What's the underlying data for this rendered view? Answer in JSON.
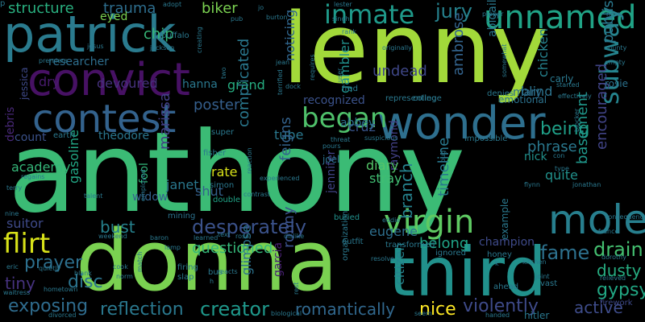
{
  "background": "#000000",
  "words": [
    {
      "text": "anthony",
      "color": "#3bbb75"
    },
    {
      "text": "lenny",
      "color": "#a2d93a"
    },
    {
      "text": "donna",
      "color": "#7ad151"
    },
    {
      "text": "patrick",
      "color": "#2a7b8e"
    },
    {
      "text": "third",
      "color": "#21918c"
    },
    {
      "text": "convict",
      "color": "#471164"
    },
    {
      "text": "wonder",
      "color": "#2e6f8e"
    },
    {
      "text": "contest",
      "color": "#33628d"
    },
    {
      "text": "unnamed",
      "color": "#20a386"
    },
    {
      "text": "inmate",
      "color": "#1f9a8a"
    },
    {
      "text": "jury",
      "color": "#26828e"
    },
    {
      "text": "mole",
      "color": "#277f8e"
    },
    {
      "text": "virgin",
      "color": "#5ec962"
    },
    {
      "text": "subway",
      "color": "#25848e"
    },
    {
      "text": "began",
      "color": "#4fc16b"
    },
    {
      "text": "flirt",
      "color": "#d8e219"
    },
    {
      "text": "desperately",
      "color": "#3b528b"
    },
    {
      "text": "creator",
      "color": "#1f988b"
    },
    {
      "text": "exposing",
      "color": "#2f6c8e"
    },
    {
      "text": "reflection",
      "color": "#2a788e"
    },
    {
      "text": "violently",
      "color": "#3e4a89"
    },
    {
      "text": "romantically",
      "color": "#31688e"
    },
    {
      "text": "questioned",
      "color": "#35b779"
    },
    {
      "text": "prayer",
      "color": "#2d708e"
    },
    {
      "text": "disc",
      "color": "#2b748e"
    },
    {
      "text": "tiny",
      "color": "#46327e"
    },
    {
      "text": "bust",
      "color": "#26828e"
    },
    {
      "text": "fame",
      "color": "#2d718e"
    },
    {
      "text": "drain",
      "color": "#44bf70"
    },
    {
      "text": "gypsy",
      "color": "#22a884"
    },
    {
      "text": "dusty",
      "color": "#26ad81"
    },
    {
      "text": "active",
      "color": "#3e4c8a"
    },
    {
      "text": "nice",
      "color": "#fde725"
    },
    {
      "text": "being",
      "color": "#1fa088"
    },
    {
      "text": "structure",
      "color": "#29af7f"
    },
    {
      "text": "trauma",
      "color": "#2e6e8e"
    },
    {
      "text": "chip",
      "color": "#37b878"
    },
    {
      "text": "poster",
      "color": "#355f8d"
    },
    {
      "text": "dry",
      "color": "#481b6d"
    },
    {
      "text": "undead",
      "color": "#3f4788"
    },
    {
      "text": "blind",
      "color": "#2c738e"
    },
    {
      "text": "mary",
      "color": "#2e6d8e"
    },
    {
      "text": "gambler",
      "color": "#21918c"
    },
    {
      "text": "noticing",
      "color": "#31668e"
    },
    {
      "text": "grand",
      "color": "#26ad81"
    },
    {
      "text": "recognized",
      "color": "#3b528b"
    },
    {
      "text": "tube",
      "color": "#2a788e"
    },
    {
      "text": "cruz",
      "color": "#39558c"
    },
    {
      "text": "count",
      "color": "#3b528b"
    },
    {
      "text": "theodore",
      "color": "#2a768e"
    },
    {
      "text": "academy",
      "color": "#35b779"
    },
    {
      "text": "marissa",
      "color": "#424086"
    },
    {
      "text": "gasoline",
      "color": "#22a785"
    },
    {
      "text": "fool",
      "color": "#32b67a"
    },
    {
      "text": "janet",
      "color": "#2a788e"
    },
    {
      "text": "shut",
      "color": "#34618d"
    },
    {
      "text": "complicated",
      "color": "#2a788e"
    },
    {
      "text": "feigns",
      "color": "#33628d"
    },
    {
      "text": "ronny",
      "color": "#3b528b"
    },
    {
      "text": "glimpse",
      "color": "#2c728e"
    },
    {
      "text": "garcia",
      "color": "#482173"
    },
    {
      "text": "eugene",
      "color": "#2e6f8e"
    },
    {
      "text": "jennifer",
      "color": "#414487"
    },
    {
      "text": "belong",
      "color": "#20a386"
    },
    {
      "text": "raymond",
      "color": "#424086"
    },
    {
      "text": "diary",
      "color": "#54c568"
    },
    {
      "text": "stray",
      "color": "#40bd72"
    },
    {
      "text": "abbey",
      "color": "#2d708e"
    },
    {
      "text": "branch",
      "color": "#26828e"
    },
    {
      "text": "timeline",
      "color": "#29798e"
    },
    {
      "text": "ambrose",
      "color": "#33638d"
    },
    {
      "text": "citizen",
      "color": "#25838e"
    },
    {
      "text": "basement",
      "color": "#1f978b"
    },
    {
      "text": "encouraged",
      "color": "#414487"
    },
    {
      "text": "quite",
      "color": "#21918c"
    },
    {
      "text": "publishing",
      "color": "#2a788e"
    },
    {
      "text": "phrase",
      "color": "#2a788e"
    },
    {
      "text": "nick",
      "color": "#21918c"
    },
    {
      "text": "chicken",
      "color": "#26828e"
    },
    {
      "text": "biker",
      "color": "#7ad151"
    },
    {
      "text": "researcher",
      "color": "#2e6e8e"
    },
    {
      "text": "devoured",
      "color": "#46327e"
    },
    {
      "text": "hanna",
      "color": "#2a788e"
    },
    {
      "text": "rate",
      "color": "#d8e219"
    },
    {
      "text": "widow",
      "color": "#34618d"
    },
    {
      "text": "suitor",
      "color": "#3e4a89"
    },
    {
      "text": "debris",
      "color": "#482878"
    },
    {
      "text": "jessica",
      "color": "#3e4989"
    },
    {
      "text": "eyed",
      "color": "#7ad151"
    },
    {
      "text": "abigail",
      "color": "#2a788e"
    },
    {
      "text": "carly",
      "color": "#2a788e"
    },
    {
      "text": "rosie",
      "color": "#2c728e"
    },
    {
      "text": "emotional",
      "color": "#2c728e"
    },
    {
      "text": "denies",
      "color": "#2a788e"
    },
    {
      "text": "example",
      "color": "#2a788e"
    },
    {
      "text": "champion",
      "color": "#3e4a89"
    },
    {
      "text": "joel",
      "color": "#2c728e"
    },
    {
      "text": "buried",
      "color": "#21918c"
    },
    {
      "text": "mining",
      "color": "#2c728e"
    },
    {
      "text": "double",
      "color": "#20a386"
    },
    {
      "text": "impossible",
      "color": "#2a788e"
    },
    {
      "text": "firework",
      "color": "#3e4a89"
    },
    {
      "text": "hitler",
      "color": "#2a788e"
    },
    {
      "text": "vast",
      "color": "#2a788e"
    },
    {
      "text": "ahead",
      "color": "#2a788e"
    },
    {
      "text": "honey",
      "color": "#2a788e"
    },
    {
      "text": "adopt",
      "color": "#2a788e"
    },
    {
      "text": "jo",
      "color": "#2a788e"
    },
    {
      "text": "burton",
      "color": "#2a788e"
    },
    {
      "text": "lester",
      "color": "#2a788e"
    },
    {
      "text": "singh",
      "color": "#2a788e"
    },
    {
      "text": "rank",
      "color": "#2a788e"
    },
    {
      "text": "proper",
      "color": "#2a788e"
    },
    {
      "text": "nora",
      "color": "#2a788e"
    },
    {
      "text": "county",
      "color": "#2a788e"
    },
    {
      "text": "empty",
      "color": "#2a788e"
    },
    {
      "text": "fisher",
      "color": "#2a788e"
    },
    {
      "text": "simon",
      "color": "#2a788e"
    },
    {
      "text": "super",
      "color": "#2a788e"
    },
    {
      "text": "earth",
      "color": "#2a788e"
    },
    {
      "text": "buffalo",
      "color": "#2a788e"
    },
    {
      "text": "jackson",
      "color": "#2a788e"
    },
    {
      "text": "jesus",
      "color": "#2a788e"
    },
    {
      "text": "jean",
      "color": "#2a788e"
    },
    {
      "text": "premiere",
      "color": "#2a788e"
    },
    {
      "text": "fred",
      "color": "#2a788e"
    },
    {
      "text": "representing",
      "color": "#2a788e"
    },
    {
      "text": "college",
      "color": "#2a788e"
    },
    {
      "text": "suspicious",
      "color": "#2a788e"
    },
    {
      "text": "threat",
      "color": "#2a788e"
    },
    {
      "text": "pours",
      "color": "#2a788e"
    },
    {
      "text": "eddie",
      "color": "#2a788e"
    },
    {
      "text": "transformed",
      "color": "#2a788e"
    },
    {
      "text": "ignored",
      "color": "#2a788e"
    },
    {
      "text": "organization",
      "color": "#2a788e"
    },
    {
      "text": "resolve",
      "color": "#2a788e"
    },
    {
      "text": "outfit",
      "color": "#2a788e"
    },
    {
      "text": "dislike",
      "color": "#2a788e"
    },
    {
      "text": "weekend",
      "color": "#2a788e"
    },
    {
      "text": "baron",
      "color": "#2a788e"
    },
    {
      "text": "learned",
      "color": "#2a788e"
    },
    {
      "text": "text",
      "color": "#2a788e"
    },
    {
      "text": "rosa",
      "color": "#2a788e"
    },
    {
      "text": "cook",
      "color": "#2a788e"
    },
    {
      "text": "norm",
      "color": "#2a788e"
    },
    {
      "text": "firing",
      "color": "#2a788e"
    },
    {
      "text": "slap",
      "color": "#2a788e"
    },
    {
      "text": "bus",
      "color": "#2a788e"
    },
    {
      "text": "blank",
      "color": "#2a788e"
    },
    {
      "text": "eric",
      "color": "#2a788e"
    },
    {
      "text": "quietly",
      "color": "#2a788e"
    },
    {
      "text": "waitress",
      "color": "#2a788e"
    },
    {
      "text": "hometown",
      "color": "#2a788e"
    },
    {
      "text": "divorced",
      "color": "#2a788e"
    },
    {
      "text": "seem",
      "color": "#2a788e"
    },
    {
      "text": "handed",
      "color": "#2a788e"
    },
    {
      "text": "kitchen",
      "color": "#2a788e"
    },
    {
      "text": "joint",
      "color": "#2a788e"
    },
    {
      "text": "relieved",
      "color": "#2a788e"
    },
    {
      "text": "dorothy",
      "color": "#2a788e"
    },
    {
      "text": "france",
      "color": "#2a788e"
    },
    {
      "text": "consequence",
      "color": "#2a788e"
    },
    {
      "text": "jonathan",
      "color": "#2a788e"
    },
    {
      "text": "flynn",
      "color": "#2a788e"
    },
    {
      "text": "type",
      "color": "#2a788e"
    },
    {
      "text": "con",
      "color": "#2a788e"
    },
    {
      "text": "blocker",
      "color": "#2a788e"
    },
    {
      "text": "effectively",
      "color": "#2a788e"
    },
    {
      "text": "somewhat",
      "color": "#2a788e"
    },
    {
      "text": "started",
      "color": "#2a788e"
    },
    {
      "text": "user",
      "color": "#2a788e"
    },
    {
      "text": "requires",
      "color": "#2a788e"
    },
    {
      "text": "creating",
      "color": "#2a788e"
    },
    {
      "text": "reaction",
      "color": "#2a788e"
    },
    {
      "text": "terrified",
      "color": "#2a788e"
    },
    {
      "text": "experienced",
      "color": "#2a788e"
    },
    {
      "text": "employed",
      "color": "#2a788e"
    },
    {
      "text": "talent",
      "color": "#2a788e"
    },
    {
      "text": "regains",
      "color": "#2a788e"
    },
    {
      "text": "terry",
      "color": "#2a788e"
    },
    {
      "text": "nine",
      "color": "#2a788e"
    },
    {
      "text": "lamp",
      "color": "#2a788e"
    },
    {
      "text": "contrast",
      "color": "#2a788e"
    },
    {
      "text": "reacts",
      "color": "#2a788e"
    },
    {
      "text": "match",
      "color": "#2a788e"
    },
    {
      "text": "biological",
      "color": "#2a788e"
    },
    {
      "text": "bug",
      "color": "#2a788e"
    },
    {
      "text": "dock",
      "color": "#2a788e"
    },
    {
      "text": "pub",
      "color": "#2a788e"
    },
    {
      "text": "rest",
      "color": "#2a788e"
    },
    {
      "text": "two",
      "color": "#2a788e"
    },
    {
      "text": "originally",
      "color": "#2a788e"
    },
    {
      "text": "h",
      "color": "#2a788e"
    },
    {
      "text": "k",
      "color": "#2a788e"
    },
    {
      "text": "p",
      "color": "#2a788e"
    }
  ]
}
